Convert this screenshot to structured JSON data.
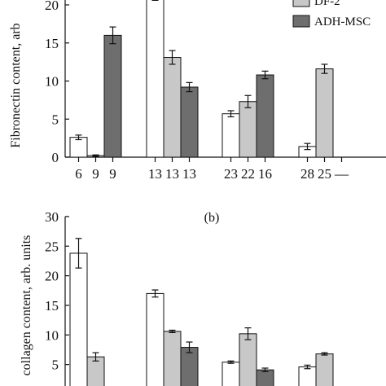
{
  "chart_data": [
    {
      "type": "bar",
      "ylabel": "Fibronectin content, arb",
      "ylim": [
        0,
        20
      ],
      "yticks": [
        "0",
        "5",
        "10",
        "15",
        "20"
      ],
      "legend_position": "top-right",
      "legend": [
        {
          "label": "DF-2",
          "color": "#c8c8c8"
        },
        {
          "label": "ADH-MSC",
          "color": "#6e6e6e"
        }
      ],
      "group_labels": [
        [
          "6",
          "9",
          "9"
        ],
        [
          "13",
          "13",
          "13"
        ],
        [
          "23",
          "22",
          "16"
        ],
        [
          "28",
          "25",
          "—"
        ]
      ],
      "series": [
        {
          "color": "#ffffff",
          "values": [
            2.6,
            21.5,
            5.7,
            1.4
          ],
          "errors": [
            0.3,
            0.9,
            0.4,
            0.4
          ]
        },
        {
          "name": "DF-2",
          "color": "#c8c8c8",
          "values": [
            0.2,
            13.1,
            7.3,
            11.6
          ],
          "errors": [
            0.1,
            0.9,
            0.8,
            0.6
          ]
        },
        {
          "name": "ADH-MSC",
          "color": "#6e6e6e",
          "values": [
            16.0,
            9.2,
            10.8,
            null
          ],
          "errors": [
            1.1,
            0.6,
            0.5,
            null
          ]
        }
      ]
    },
    {
      "type": "bar",
      "panel_label": "(b)",
      "ylabel": "collagen content, arb. units",
      "ylim": [
        0,
        30
      ],
      "yticks": [
        "5",
        "10",
        "15",
        "20",
        "25",
        "30"
      ],
      "series": [
        {
          "color": "#ffffff",
          "values": [
            23.8,
            17.0,
            5.4,
            4.6
          ],
          "errors": [
            2.5,
            0.6,
            0.2,
            0.3
          ]
        },
        {
          "name": "DF-2",
          "color": "#c8c8c8",
          "values": [
            6.3,
            10.6,
            10.2,
            6.8
          ],
          "errors": [
            0.7,
            0.2,
            1.0,
            0.2
          ]
        },
        {
          "name": "ADH-MSC",
          "color": "#6e6e6e",
          "values": [
            null,
            7.9,
            4.1,
            null
          ],
          "errors": [
            null,
            0.9,
            0.3,
            null
          ]
        }
      ]
    }
  ]
}
